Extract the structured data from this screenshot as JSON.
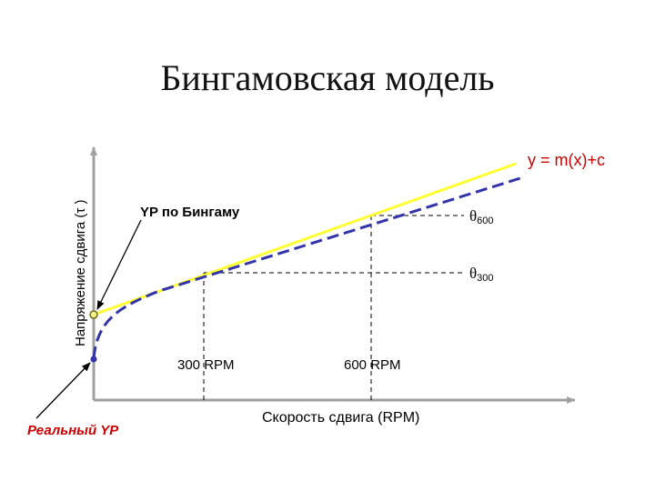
{
  "title": "Бингамовская модель",
  "y_axis_label": "Напряжение сдвига (τ )",
  "x_axis_label": "Скорость сдвига (RPM)",
  "equation": "y = m(x)+c",
  "bingham_yp_label": "YP по Бингаму",
  "real_yp_label": "Реальный YP",
  "rpm_300": "300 RPM",
  "rpm_600": "600 RPM",
  "theta_600": {
    "symbol": "θ",
    "sub": "600"
  },
  "theta_300": {
    "symbol": "θ",
    "sub": "300"
  },
  "colors": {
    "bingham_line": "#FFFF33",
    "real_curve": "#3333AA",
    "equation_text": "#CC0000",
    "real_yp_text": "#CC0000",
    "axis": "#A0A0A0"
  }
}
